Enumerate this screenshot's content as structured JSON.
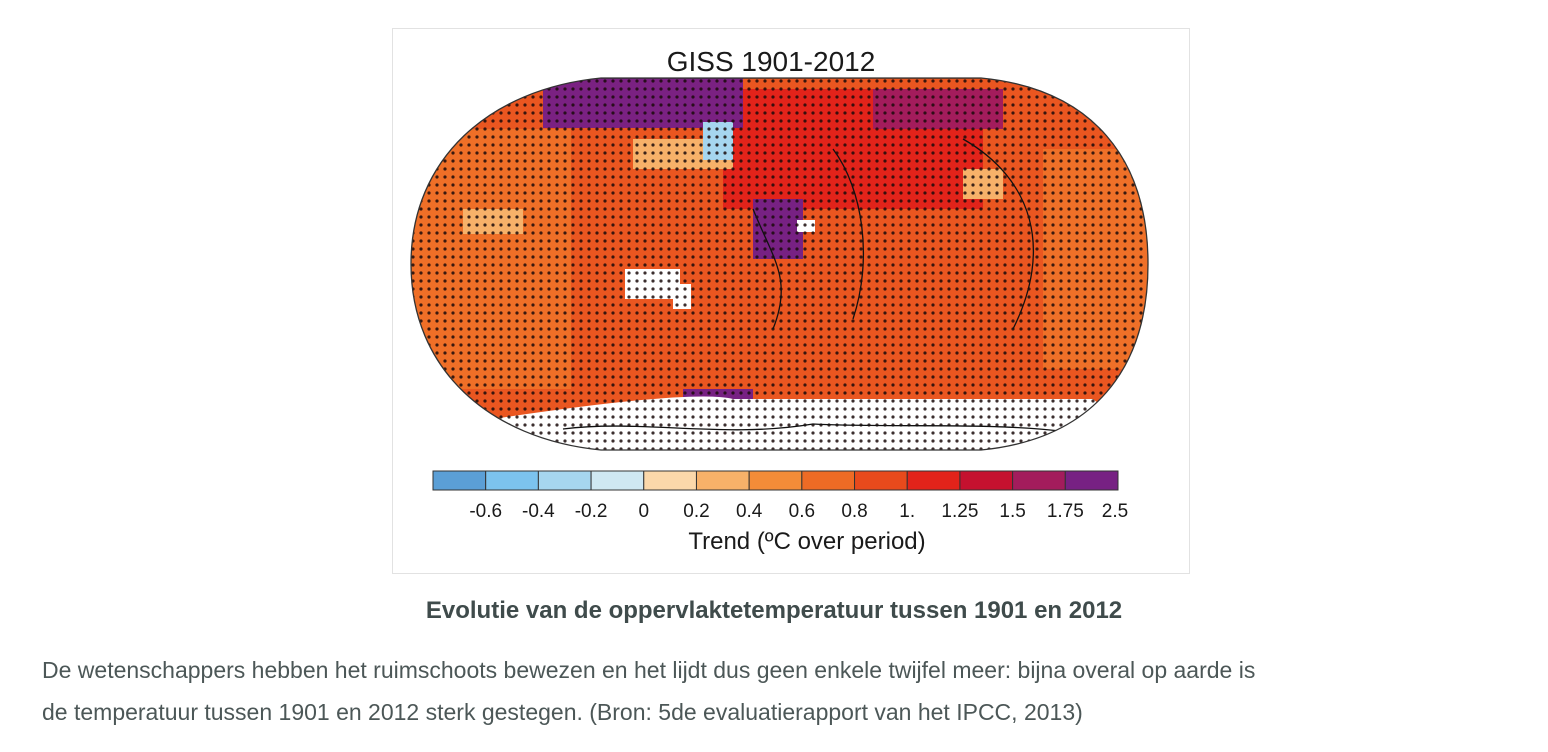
{
  "figure": {
    "title": "GISS 1901-2012",
    "colorbar": {
      "colors": [
        "#5b9fd6",
        "#7cc3ee",
        "#a6d6ef",
        "#cfe8f2",
        "#fbd8aa",
        "#f7b169",
        "#f38c38",
        "#ee6b25",
        "#e84a1c",
        "#e2231a",
        "#c5112f",
        "#a31c5c",
        "#772183"
      ],
      "labels": [
        "-0.6",
        "-0.4",
        "-0.2",
        "0",
        "0.2",
        "0.4",
        "0.6",
        "0.8",
        "1.",
        "1.25",
        "1.5",
        "1.75",
        "2.5"
      ],
      "axis_label": "Trend (ºC over period)"
    }
  },
  "caption": "Evolutie van de oppervlaktetemperatuur tussen 1901 en 2012",
  "paragraph": {
    "lines": [
      "De wetenschappers hebben het ruimschoots bewezen en het lijdt dus geen enkele twijfel meer: bijna overal op aarde is",
      "de temperatuur tussen 1901 en 2012 sterk gestegen. (Bron: 5de evaluatierapport van het IPCC, 2013)"
    ]
  }
}
